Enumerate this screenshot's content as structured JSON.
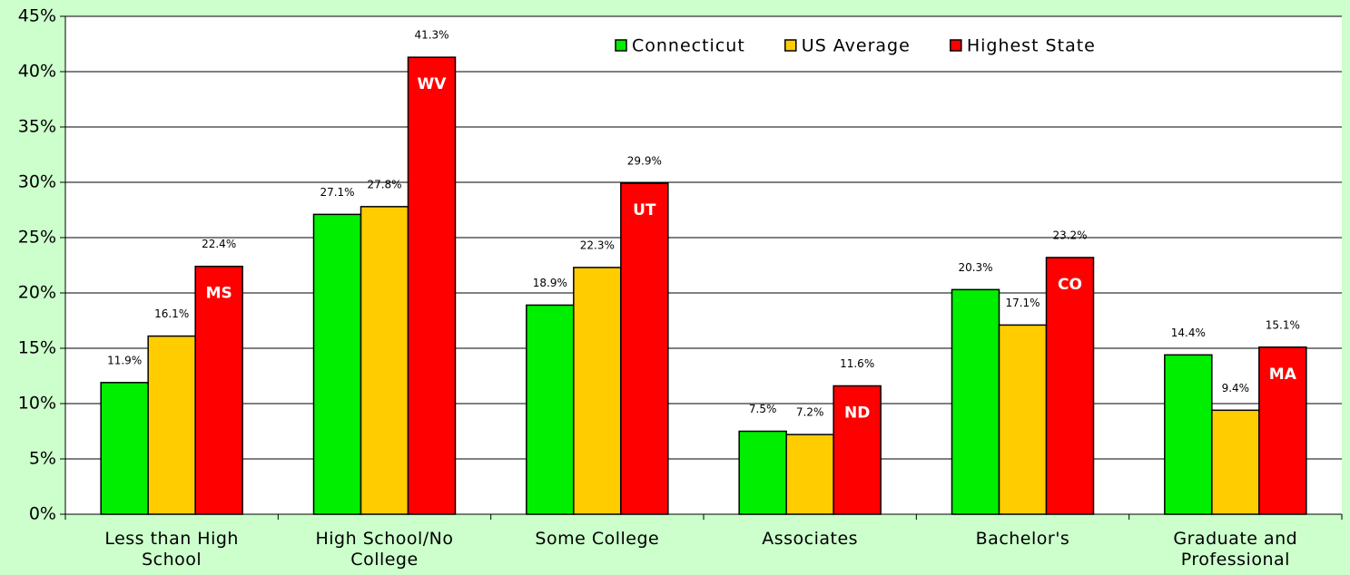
{
  "chart_data": {
    "type": "bar",
    "categories": [
      "Less than High School",
      "High School/No College",
      "Some College",
      "Associates",
      "Bachelor's",
      "Graduate and Professional"
    ],
    "series": [
      {
        "name": "Connecticut",
        "color": "#00ee00",
        "values": [
          11.9,
          27.1,
          18.9,
          7.5,
          20.3,
          14.4
        ],
        "value_labels": [
          "11.9%",
          "27.1%",
          "18.9%",
          "7.5%",
          "20.3%",
          "14.4%"
        ]
      },
      {
        "name": "US Average",
        "color": "#ffcc00",
        "values": [
          16.1,
          27.8,
          22.3,
          7.2,
          17.1,
          9.4
        ],
        "value_labels": [
          "16.1%",
          "27.8%",
          "22.3%",
          "7.2%",
          "17.1%",
          "9.4%"
        ]
      },
      {
        "name": "Highest State",
        "color": "#ff0000",
        "values": [
          22.4,
          41.3,
          29.9,
          11.6,
          23.2,
          15.1
        ],
        "value_labels": [
          "22.4%",
          "41.3%",
          "29.9%",
          "11.6%",
          "23.2%",
          "15.1%"
        ],
        "annotations": [
          "MS",
          "WV",
          "UT",
          "ND",
          "CO",
          "MA"
        ]
      }
    ],
    "ylim": [
      0,
      45
    ],
    "yticks": [
      {
        "value": 0,
        "label": "0%"
      },
      {
        "value": 5,
        "label": "5%"
      },
      {
        "value": 10,
        "label": "10%"
      },
      {
        "value": 15,
        "label": "15%"
      },
      {
        "value": 20,
        "label": "20%"
      },
      {
        "value": 25,
        "label": "25%"
      },
      {
        "value": 30,
        "label": "30%"
      },
      {
        "value": 35,
        "label": "35%"
      },
      {
        "value": 40,
        "label": "40%"
      },
      {
        "value": 45,
        "label": "45%"
      }
    ],
    "grid": true,
    "legend": "top"
  }
}
